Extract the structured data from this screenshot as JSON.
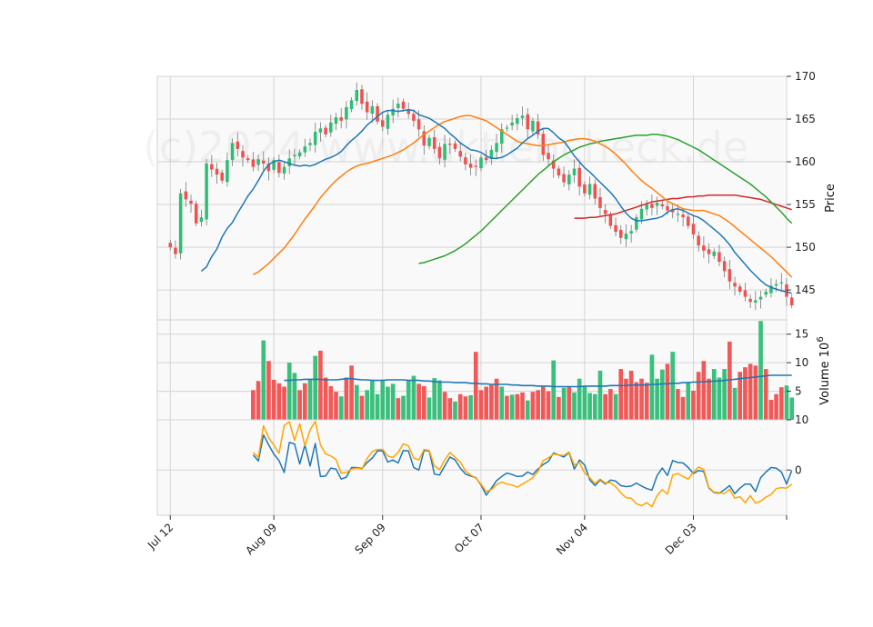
{
  "chart_data": [
    {
      "panel": "price",
      "type": "candlestick",
      "ylabel": "Price",
      "ylim": [
        141.5,
        170
      ],
      "yticks": [
        145,
        150,
        155,
        160,
        165,
        170
      ],
      "xlim": [
        -2.5,
        119
      ],
      "xticks": [
        {
          "index": 0,
          "label": "Jul 12"
        },
        {
          "index": 20,
          "label": "Aug 09"
        },
        {
          "index": 41,
          "label": "Sep 09"
        },
        {
          "index": 60,
          "label": "Oct 07"
        },
        {
          "index": 80,
          "label": "Nov 04"
        },
        {
          "index": 101,
          "label": "Dec 03"
        },
        {
          "index": 119,
          "label": ""
        }
      ],
      "grid": true,
      "watermark": "(c)2024 www.aktiencheck.de",
      "colors": {
        "up": "#2ebd75",
        "down": "#f0504f",
        "ma10": "#1f77b4",
        "ma20": "#ff7f0e",
        "ma50": "#2ca02c",
        "ma200": "#d62728"
      },
      "close": [
        150,
        149.2,
        156.3,
        155.6,
        155.1,
        152.8,
        153.5,
        159.8,
        159.1,
        158.5,
        157.8,
        160.2,
        162.2,
        161.5,
        160.5,
        160.2,
        159.4,
        160.3,
        159.8,
        158.9,
        160.2,
        158.7,
        159.4,
        160.4,
        160.8,
        161.1,
        161.8,
        162.2,
        163.5,
        163.9,
        163.2,
        164.6,
        165.2,
        164.8,
        166.4,
        167.2,
        168.4,
        166.8,
        165.8,
        166.5,
        164.7,
        164.1,
        165.5,
        166.2,
        166.8,
        166.2,
        165.6,
        164.8,
        163.8,
        161.9,
        162.8,
        161.5,
        160.4,
        162.1,
        162.0,
        161.5,
        160.6,
        159.7,
        159.3,
        159.4,
        160.5,
        160.2,
        161.4,
        162.2,
        163.8,
        164.0,
        164.6,
        165.1,
        165.4,
        163.8,
        164.8,
        163.2,
        160.8,
        160.3,
        159.2,
        158.4,
        157.6,
        158.5,
        159.2,
        157.1,
        156.3,
        157.4,
        155.7,
        154.6,
        153.9,
        152.5,
        151.8,
        151.1,
        151.6,
        151.9,
        153.5,
        154.5,
        155.0,
        154.6,
        155.2,
        154.8,
        154.3,
        154.1,
        153.9,
        153.5,
        152.5,
        151.5,
        150.2,
        149.6,
        149.2,
        149.5,
        148.3,
        147.2,
        146.0,
        145.4,
        144.8,
        144.2,
        143.6,
        143.8,
        144.2,
        144.8,
        145.5,
        145.7,
        145.9,
        144.2,
        143.2
      ],
      "ma10": [
        147.2,
        147.7,
        148.9,
        149.8,
        151.2,
        152.2,
        152.9,
        154.0,
        155.0,
        156.0,
        156.8,
        157.8,
        158.9,
        159.7,
        160.0,
        160.2,
        160.0,
        159.8,
        159.6,
        159.5,
        159.6,
        159.5,
        159.7,
        160.0,
        160.3,
        160.5,
        160.8,
        161.2,
        161.9,
        162.5,
        163.0,
        163.6,
        164.3,
        164.8,
        165.3,
        165.8,
        166.0,
        166.0,
        165.9,
        166.0,
        166.1,
        166.0,
        165.5,
        165.3,
        165.1,
        164.7,
        164.3,
        163.9,
        163.3,
        162.8,
        162.2,
        161.8,
        161.4,
        161.3,
        161.1,
        160.7,
        160.4,
        160.4,
        160.5,
        160.8,
        161.2,
        161.6,
        162.2,
        162.7,
        163.1,
        163.6,
        163.9,
        163.9,
        163.4,
        162.8,
        162.4,
        161.6,
        160.7,
        160.0,
        159.3,
        158.8,
        158.2,
        157.6,
        157.0,
        156.4,
        155.7,
        154.8,
        154.0,
        153.4,
        153.1,
        153.1,
        153.2,
        153.3,
        153.4,
        153.6,
        154.1,
        154.4,
        154.5,
        154.3,
        154.0,
        153.7,
        153.5,
        153.1,
        152.6,
        152.1,
        151.6,
        151.0,
        150.3,
        149.4,
        148.7,
        148.0,
        147.3,
        146.7,
        146.1,
        145.6,
        145.3,
        145.1,
        144.9,
        144.8,
        144.6
      ],
      "ma20": [
        146.8,
        147.1,
        147.6,
        148.1,
        148.7,
        149.3,
        149.9,
        150.7,
        151.5,
        152.4,
        153.3,
        154.1,
        154.9,
        155.8,
        156.5,
        157.2,
        157.8,
        158.3,
        158.8,
        159.2,
        159.5,
        159.7,
        159.8,
        160.0,
        160.2,
        160.4,
        160.6,
        160.8,
        161.1,
        161.4,
        161.8,
        162.2,
        162.7,
        163.2,
        163.6,
        164.0,
        164.4,
        164.7,
        164.9,
        165.1,
        165.3,
        165.4,
        165.4,
        165.2,
        165.0,
        164.8,
        164.4,
        164.0,
        163.6,
        163.2,
        162.8,
        162.4,
        162.2,
        162.1,
        162.0,
        161.9,
        161.9,
        162.0,
        162.1,
        162.2,
        162.3,
        162.5,
        162.6,
        162.7,
        162.7,
        162.6,
        162.4,
        162.1,
        161.8,
        161.4,
        160.9,
        160.3,
        159.7,
        159.0,
        158.4,
        157.8,
        157.3,
        156.9,
        156.4,
        155.9,
        155.4,
        155.1,
        154.8,
        154.5,
        154.4,
        154.3,
        154.3,
        154.3,
        154.1,
        153.9,
        153.7,
        153.3,
        152.9,
        152.4,
        151.9,
        151.4,
        150.9,
        150.4,
        149.9,
        149.4,
        148.9,
        148.3,
        147.7,
        147.1,
        146.5
      ],
      "ma50": [
        148.1,
        148.2,
        148.4,
        148.6,
        148.8,
        149.0,
        149.3,
        149.6,
        150.0,
        150.4,
        150.9,
        151.4,
        151.9,
        152.5,
        153.1,
        153.7,
        154.3,
        154.9,
        155.5,
        156.1,
        156.7,
        157.3,
        157.9,
        158.5,
        159.0,
        159.5,
        160.0,
        160.4,
        160.8,
        161.1,
        161.4,
        161.7,
        161.9,
        162.1,
        162.2,
        162.4,
        162.5,
        162.6,
        162.7,
        162.8,
        162.9,
        163.0,
        163.1,
        163.1,
        163.1,
        163.2,
        163.2,
        163.1,
        163.0,
        162.8,
        162.6,
        162.3,
        162.0,
        161.7,
        161.4,
        161.0,
        160.6,
        160.2,
        159.8,
        159.4,
        159.0,
        158.6,
        158.2,
        157.8,
        157.4,
        156.9,
        156.4,
        155.9,
        155.3,
        154.7,
        154.1,
        153.4,
        152.8
      ],
      "ma200": [
        153.4,
        153.4,
        153.4,
        153.5,
        153.5,
        153.6,
        153.7,
        153.8,
        153.9,
        154.1,
        154.3,
        154.5,
        154.7,
        154.9,
        155.1,
        155.3,
        155.4,
        155.5,
        155.6,
        155.7,
        155.7,
        155.8,
        155.9,
        155.9,
        156.0,
        156.0,
        156.1,
        156.1,
        156.1,
        156.1,
        156.1,
        156.1,
        156.0,
        155.9,
        155.8,
        155.7,
        155.6,
        155.4,
        155.2,
        155.0,
        154.8,
        154.6,
        154.4
      ]
    },
    {
      "panel": "volume",
      "type": "bar",
      "ylabel": "Volume  10^6",
      "ylim": [
        0,
        17.5
      ],
      "yticks": [
        5,
        10,
        15
      ],
      "values": [
        5.2,
        6.8,
        13.9,
        10.3,
        7.0,
        6.4,
        5.8,
        10.0,
        8.2,
        5.2,
        6.4,
        7.1,
        11.2,
        12.1,
        7.4,
        5.9,
        4.9,
        4.1,
        7.4,
        9.5,
        6.1,
        4.2,
        5.2,
        6.8,
        4.5,
        6.8,
        5.8,
        6.3,
        3.8,
        4.2,
        6.9,
        7.7,
        6.3,
        5.9,
        3.9,
        7.3,
        6.9,
        4.9,
        3.8,
        3.2,
        4.5,
        4.1,
        4.3,
        11.9,
        5.2,
        5.8,
        6.1,
        7.2,
        5.8,
        4.2,
        4.4,
        4.5,
        4.8,
        3.4,
        4.9,
        5.2,
        5.8,
        5.0,
        10.4,
        4.0,
        5.6,
        5.8,
        4.8,
        7.2,
        5.9,
        4.7,
        4.5,
        8.6,
        4.5,
        5.4,
        4.5,
        8.9,
        7.2,
        8.6,
        6.6,
        7.2,
        6.5,
        11.4,
        7.2,
        8.8,
        9.8,
        11.9,
        5.4,
        4.0,
        6.6,
        5.1,
        8.4,
        10.3,
        7.2,
        8.9,
        7.4,
        8.9,
        13.7,
        5.6,
        8.4,
        9.2,
        9.8,
        9.5,
        17.3,
        8.9,
        3.5,
        4.5,
        5.7,
        6.0,
        3.9
      ],
      "up": [
        false,
        false,
        true,
        false,
        false,
        false,
        false,
        true,
        true,
        false,
        false,
        true,
        true,
        false,
        false,
        false,
        false,
        true,
        false,
        false,
        true,
        false,
        true,
        true,
        true,
        true,
        true,
        true,
        false,
        true,
        true,
        true,
        false,
        false,
        true,
        true,
        true,
        false,
        false,
        true,
        false,
        false,
        true,
        false,
        false,
        false,
        false,
        false,
        true,
        false,
        true,
        false,
        false,
        true,
        false,
        false,
        false,
        false,
        true,
        false,
        true,
        false,
        true,
        true,
        true,
        true,
        true,
        true,
        false,
        false,
        true,
        false,
        false,
        false,
        false,
        false,
        false,
        true,
        true,
        true,
        false,
        true,
        false,
        false,
        true,
        false,
        false,
        false,
        false,
        true,
        true,
        true,
        false,
        true,
        false,
        false,
        false,
        false,
        true,
        false,
        false,
        false,
        false,
        true,
        true
      ],
      "avg": [
        6.9,
        6.9,
        7.0,
        7.0,
        7.1,
        7.1,
        7.1,
        7.1,
        7.0,
        7.0,
        7.0,
        7.1,
        7.2,
        7.2,
        7.1,
        7.0,
        7.0,
        6.9,
        6.9,
        6.9,
        7.0,
        7.0,
        7.0,
        7.0,
        6.9,
        6.9,
        6.9,
        6.8,
        6.8,
        6.7,
        6.6,
        6.6,
        6.6,
        6.5,
        6.5,
        6.5,
        6.4,
        6.4,
        6.3,
        6.3,
        6.2,
        6.2,
        6.2,
        6.2,
        6.1,
        6.1,
        6.0,
        6.0,
        6.0,
        5.9,
        5.9,
        5.9,
        5.8,
        5.8,
        5.8,
        5.8,
        5.8,
        5.8,
        5.9,
        5.9,
        5.9,
        5.9,
        5.9,
        6.0,
        6.0,
        6.0,
        6.0,
        6.1,
        6.1,
        6.1,
        6.1,
        6.2,
        6.2,
        6.3,
        6.3,
        6.4,
        6.4,
        6.5,
        6.5,
        6.6,
        6.6,
        6.7,
        6.7,
        6.8,
        6.8,
        6.9,
        7.0,
        7.1,
        7.2,
        7.3,
        7.4,
        7.5,
        7.6,
        7.7,
        7.8,
        7.8,
        7.8,
        7.8,
        7.8
      ]
    },
    {
      "panel": "oscillator",
      "type": "line",
      "ylabel": "",
      "ylim": [
        -9,
        10
      ],
      "yticks": [
        0,
        10
      ],
      "series": [
        {
          "color": "#1f77b4",
          "values": [
            3.0,
            1.8,
            7.0,
            5.0,
            3.2,
            1.9,
            -0.5,
            5.5,
            5.2,
            1.2,
            5.0,
            0.8,
            5.3,
            -1.3,
            -1.2,
            0.4,
            0.2,
            -1.8,
            -1.4,
            0.5,
            0.5,
            0.3,
            1.5,
            2.4,
            3.8,
            3.8,
            1.6,
            2.0,
            1.4,
            3.9,
            3.8,
            0.5,
            0.0,
            3.9,
            3.8,
            -0.8,
            -1.0,
            0.8,
            2.6,
            2.0,
            0.4,
            -0.8,
            -1.2,
            -1.5,
            -3.0,
            -5.0,
            -3.6,
            -2.1,
            -1.3,
            -0.6,
            -0.9,
            -1.3,
            -1.2,
            -0.4,
            -0.9,
            0.2,
            1.1,
            1.7,
            3.4,
            3.0,
            2.6,
            3.5,
            0.2,
            2.0,
            1.0,
            -2.0,
            -3.1,
            -2.0,
            -2.8,
            -2.0,
            -2.2,
            -3.1,
            -3.3,
            -3.2,
            -2.6,
            -3.2,
            -3.7,
            -4.0,
            -1.1,
            0.4,
            -1.1,
            1.9,
            1.5,
            1.4,
            0.5,
            -0.7,
            -0.1,
            -0.3,
            -3.6,
            -4.5,
            -4.6,
            -3.9,
            -3.1,
            -4.7,
            -3.6,
            -2.8,
            -2.8,
            -4.3,
            -1.5,
            -0.4,
            0.5,
            0.4,
            -0.4,
            -2.8,
            -0.1
          ]
        },
        {
          "color": "#ffa500",
          "values": [
            3.5,
            2.5,
            8.8,
            6.4,
            5.0,
            3.3,
            8.9,
            9.6,
            5.9,
            9.2,
            4.8,
            8.0,
            9.7,
            5.0,
            3.2,
            2.8,
            2.1,
            -0.6,
            -0.5,
            0.2,
            0.4,
            0.2,
            2.3,
            3.7,
            4.1,
            4.1,
            2.8,
            2.5,
            3.5,
            5.2,
            4.8,
            2.4,
            2.0,
            4.1,
            3.9,
            0.8,
            0.1,
            2.0,
            3.5,
            2.5,
            1.6,
            -0.2,
            -1.0,
            -1.6,
            -2.8,
            -4.3,
            -3.9,
            -2.9,
            -2.4,
            -2.8,
            -3.0,
            -3.4,
            -2.8,
            -2.2,
            -1.5,
            -0.3,
            1.9,
            2.4,
            3.2,
            3.0,
            2.9,
            3.6,
            1.0,
            1.5,
            -0.6,
            -1.5,
            -2.7,
            -1.8,
            -2.6,
            -2.5,
            -3.3,
            -4.5,
            -5.5,
            -5.6,
            -6.7,
            -7.1,
            -6.5,
            -7.3,
            -5.1,
            -3.9,
            -4.8,
            -1.0,
            -0.7,
            -1.3,
            -1.8,
            -0.4,
            0.6,
            0.1,
            -3.5,
            -4.4,
            -4.5,
            -4.7,
            -3.8,
            -5.6,
            -5.3,
            -6.5,
            -5.1,
            -6.6,
            -6.2,
            -5.4,
            -4.9,
            -3.7,
            -3.5,
            -3.6,
            -2.8
          ]
        }
      ]
    }
  ]
}
